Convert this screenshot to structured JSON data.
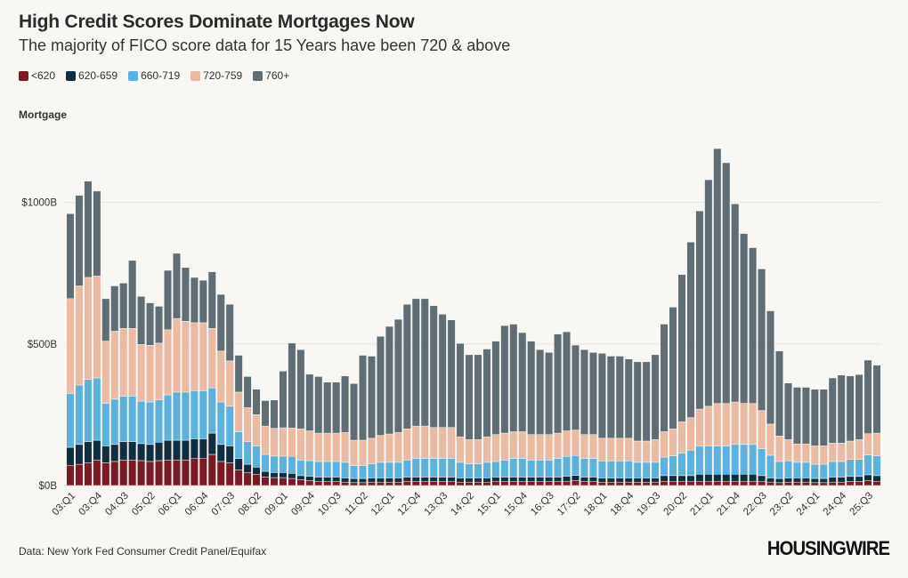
{
  "title": "High Credit Scores Dominate Mortgages Now",
  "subtitle": "The majority of FICO score data for 15 Years have been 720 & above",
  "panel_label": "Mortgage",
  "source": "Data: New York Fed Consumer Credit Panel/Equifax",
  "brand": "HOUSINGWIRE",
  "legend": [
    {
      "label": "<620",
      "color": "#7b1a25"
    },
    {
      "label": "620-659",
      "color": "#0f2e40"
    },
    {
      "label": "660-719",
      "color": "#5db2dd"
    },
    {
      "label": "720-759",
      "color": "#eabaa2"
    },
    {
      "label": "760+",
      "color": "#606d75"
    }
  ],
  "chart_data": {
    "type": "bar",
    "stacked": true,
    "title": "High Credit Scores Dominate Mortgages Now",
    "subtitle": "The majority of FICO score data for 15 Years have been 720 & above",
    "ylabel": "Mortgage",
    "ylim": [
      0,
      1250
    ],
    "yticks": [
      0,
      500,
      1000
    ],
    "ytick_labels": [
      "$0B",
      "$500B",
      "$1000B"
    ],
    "grid": true,
    "legend_position": "top-left",
    "categories": [
      "03:Q1",
      "03:Q2",
      "03:Q3",
      "03:Q4",
      "04:Q1",
      "04:Q2",
      "04:Q3",
      "04:Q4",
      "05:Q1",
      "05:Q2",
      "05:Q3",
      "05:Q4",
      "06:Q1",
      "06:Q2",
      "06:Q3",
      "06:Q4",
      "07:Q1",
      "07:Q2",
      "07:Q3",
      "07:Q4",
      "08:Q1",
      "08:Q2",
      "08:Q3",
      "08:Q4",
      "09:Q1",
      "09:Q2",
      "09:Q3",
      "09:Q4",
      "10:Q1",
      "10:Q2",
      "10:Q3",
      "10:Q4",
      "11:Q1",
      "11:Q2",
      "11:Q3",
      "11:Q4",
      "12:Q1",
      "12:Q2",
      "12:Q3",
      "12:Q4",
      "13:Q1",
      "13:Q2",
      "13:Q3",
      "13:Q4",
      "14:Q1",
      "14:Q2",
      "14:Q3",
      "14:Q4",
      "15:Q1",
      "15:Q2",
      "15:Q3",
      "15:Q4",
      "16:Q1",
      "16:Q2",
      "16:Q3",
      "16:Q4",
      "17:Q1",
      "17:Q2",
      "17:Q3",
      "17:Q4",
      "18:Q1",
      "18:Q2",
      "18:Q3",
      "18:Q4",
      "19:Q1",
      "19:Q2",
      "19:Q3",
      "19:Q4",
      "20:Q1",
      "20:Q2",
      "20:Q3",
      "20:Q4",
      "21:Q1",
      "21:Q2",
      "21:Q3",
      "21:Q4",
      "22:Q1",
      "22:Q2",
      "22:Q3",
      "22:Q4",
      "23:Q1",
      "23:Q2",
      "23:Q3",
      "23:Q4",
      "24:Q1",
      "24:Q2",
      "24:Q3",
      "24:Q4",
      "25:Q1",
      "25:Q2",
      "25:Q3",
      "25:Q4"
    ],
    "x_tick_labels": [
      "03:Q1",
      "03:Q4",
      "04:Q3",
      "05:Q2",
      "06:Q1",
      "06:Q4",
      "07:Q3",
      "08:Q2",
      "09:Q1",
      "09:Q4",
      "10:Q3",
      "11:Q2",
      "12:Q1",
      "12:Q4",
      "13:Q3",
      "14:Q2",
      "15:Q1",
      "15:Q4",
      "16:Q3",
      "17:Q2",
      "18:Q1",
      "18:Q4",
      "19:Q3",
      "20:Q2",
      "21:Q1",
      "21:Q4",
      "22:Q3",
      "23:Q2",
      "24:Q1",
      "24:Q4",
      "25:Q3"
    ],
    "series": [
      {
        "name": "<620",
        "values": [
          70,
          75,
          80,
          90,
          80,
          85,
          90,
          90,
          88,
          85,
          88,
          90,
          90,
          90,
          95,
          95,
          110,
          85,
          80,
          55,
          45,
          40,
          30,
          28,
          28,
          25,
          20,
          18,
          15,
          15,
          15,
          12,
          10,
          10,
          12,
          12,
          12,
          12,
          15,
          15,
          15,
          15,
          15,
          15,
          12,
          12,
          12,
          12,
          15,
          15,
          15,
          15,
          15,
          15,
          15,
          15,
          15,
          18,
          15,
          15,
          12,
          12,
          12,
          12,
          12,
          12,
          12,
          15,
          15,
          15,
          15,
          15,
          15,
          15,
          15,
          15,
          15,
          15,
          15,
          12,
          10,
          12,
          12,
          12,
          10,
          10,
          12,
          12,
          14,
          14,
          18,
          15
        ]
      },
      {
        "name": "620-659",
        "values": [
          65,
          70,
          75,
          70,
          60,
          60,
          65,
          65,
          60,
          60,
          65,
          70,
          70,
          70,
          70,
          70,
          75,
          60,
          60,
          40,
          30,
          25,
          20,
          18,
          18,
          18,
          15,
          15,
          15,
          15,
          15,
          15,
          15,
          15,
          15,
          15,
          15,
          15,
          15,
          15,
          15,
          15,
          15,
          15,
          15,
          15,
          15,
          15,
          15,
          15,
          15,
          15,
          15,
          15,
          15,
          15,
          18,
          18,
          15,
          15,
          15,
          15,
          15,
          15,
          15,
          15,
          15,
          20,
          20,
          20,
          20,
          25,
          25,
          25,
          25,
          25,
          25,
          25,
          20,
          15,
          15,
          15,
          15,
          15,
          15,
          15,
          18,
          18,
          18,
          18,
          20,
          20
        ]
      },
      {
        "name": "660-719",
        "values": [
          190,
          210,
          220,
          220,
          150,
          160,
          160,
          160,
          150,
          150,
          150,
          160,
          170,
          170,
          170,
          170,
          160,
          150,
          140,
          95,
          80,
          75,
          60,
          58,
          58,
          60,
          55,
          55,
          55,
          55,
          55,
          55,
          45,
          45,
          50,
          55,
          55,
          55,
          60,
          65,
          65,
          65,
          65,
          65,
          55,
          50,
          50,
          55,
          55,
          60,
          65,
          65,
          60,
          60,
          60,
          65,
          70,
          70,
          65,
          65,
          60,
          60,
          60,
          60,
          55,
          55,
          55,
          65,
          70,
          80,
          90,
          100,
          100,
          100,
          100,
          105,
          105,
          105,
          95,
          80,
          60,
          60,
          55,
          55,
          50,
          50,
          55,
          55,
          60,
          60,
          70,
          70
        ]
      },
      {
        "name": "720-759",
        "values": [
          335,
          350,
          360,
          360,
          220,
          240,
          240,
          240,
          200,
          200,
          200,
          230,
          260,
          250,
          240,
          240,
          210,
          180,
          160,
          140,
          120,
          110,
          100,
          98,
          100,
          100,
          110,
          105,
          100,
          100,
          100,
          105,
          90,
          90,
          90,
          95,
          100,
          105,
          110,
          115,
          115,
          110,
          110,
          110,
          90,
          85,
          85,
          90,
          95,
          95,
          95,
          95,
          90,
          90,
          90,
          90,
          90,
          90,
          85,
          85,
          80,
          80,
          80,
          80,
          75,
          75,
          80,
          90,
          95,
          110,
          115,
          130,
          140,
          150,
          150,
          150,
          145,
          145,
          135,
          110,
          90,
          75,
          65,
          65,
          65,
          65,
          65,
          65,
          65,
          70,
          75,
          80
        ]
      },
      {
        "name": "760+",
        "values": [
          300,
          320,
          340,
          300,
          150,
          160,
          160,
          240,
          170,
          150,
          130,
          210,
          230,
          190,
          160,
          150,
          200,
          200,
          200,
          130,
          110,
          90,
          90,
          100,
          200,
          300,
          280,
          200,
          200,
          180,
          180,
          200,
          200,
          300,
          290,
          350,
          380,
          400,
          440,
          450,
          450,
          430,
          400,
          380,
          330,
          300,
          300,
          310,
          330,
          380,
          380,
          350,
          330,
          300,
          290,
          350,
          350,
          300,
          300,
          290,
          300,
          290,
          290,
          280,
          280,
          280,
          300,
          380,
          430,
          520,
          620,
          700,
          800,
          900,
          850,
          700,
          600,
          550,
          500,
          400,
          300,
          200,
          200,
          200,
          200,
          200,
          230,
          240,
          230,
          230,
          260,
          240
        ]
      }
    ]
  }
}
